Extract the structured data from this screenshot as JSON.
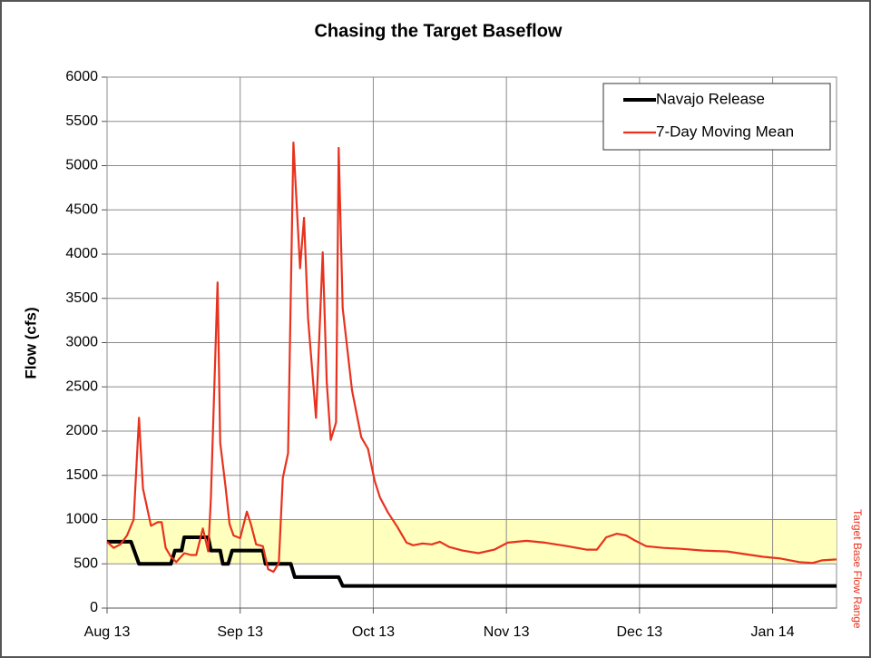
{
  "chart_data": {
    "type": "line",
    "title": "Chasing the Target Baseflow",
    "ylabel": "Flow (cfs)",
    "ylim": [
      0,
      6000
    ],
    "yticks": [
      0,
      500,
      1000,
      1500,
      2000,
      2500,
      3000,
      3500,
      4000,
      4500,
      5000,
      5500,
      6000
    ],
    "xlim": [
      0,
      5.48
    ],
    "xticks": [
      {
        "value": 0,
        "label": "Aug 13"
      },
      {
        "value": 1,
        "label": "Sep 13"
      },
      {
        "value": 2,
        "label": "Oct 13"
      },
      {
        "value": 3,
        "label": "Nov 13"
      },
      {
        "value": 4,
        "label": "Dec 13"
      },
      {
        "value": 5,
        "label": "Jan 14"
      }
    ],
    "grid": true,
    "legend": "upper right",
    "band": {
      "range": [
        500,
        1000
      ],
      "color": "#ffffb3",
      "label": "Target Base Flow Range",
      "label_color": "#e8321e"
    },
    "series": [
      {
        "name": "Navajo Release",
        "color": "#000000",
        "x": [
          0,
          0.18,
          0.24,
          0.48,
          0.51,
          0.56,
          0.58,
          0.76,
          0.78,
          0.85,
          0.87,
          0.91,
          0.94,
          1.17,
          1.19,
          1.38,
          1.41,
          1.74,
          1.77,
          5.48
        ],
        "values": [
          750,
          750,
          500,
          500,
          650,
          650,
          800,
          800,
          650,
          650,
          500,
          500,
          650,
          650,
          500,
          500,
          350,
          350,
          250,
          250
        ]
      },
      {
        "name": "7-Day Moving Mean",
        "color": "#e8321e",
        "x": [
          0,
          0.05,
          0.1,
          0.15,
          0.2,
          0.24,
          0.27,
          0.33,
          0.38,
          0.41,
          0.44,
          0.48,
          0.52,
          0.58,
          0.63,
          0.67,
          0.72,
          0.76,
          0.78,
          0.83,
          0.85,
          0.89,
          0.92,
          0.95,
          1.0,
          1.05,
          1.08,
          1.12,
          1.17,
          1.21,
          1.25,
          1.29,
          1.32,
          1.36,
          1.4,
          1.45,
          1.48,
          1.51,
          1.57,
          1.62,
          1.65,
          1.68,
          1.72,
          1.74,
          1.77,
          1.84,
          1.91,
          1.96,
          2.01,
          2.05,
          2.11,
          2.18,
          2.25,
          2.3,
          2.37,
          2.44,
          2.5,
          2.57,
          2.67,
          2.79,
          2.91,
          3.01,
          3.15,
          3.29,
          3.46,
          3.6,
          3.68,
          3.75,
          3.83,
          3.9,
          3.97,
          4.05,
          4.18,
          4.31,
          4.48,
          4.66,
          4.79,
          4.93,
          5.06,
          5.2,
          5.3,
          5.37,
          5.48
        ],
        "values": [
          750,
          680,
          720,
          820,
          1000,
          2150,
          1350,
          930,
          970,
          970,
          680,
          580,
          520,
          620,
          600,
          600,
          900,
          640,
          1230,
          3680,
          1870,
          1370,
          950,
          820,
          790,
          1090,
          950,
          720,
          700,
          440,
          410,
          510,
          1470,
          1750,
          5260,
          3840,
          4410,
          3280,
          2150,
          4020,
          2560,
          1900,
          2100,
          5200,
          3390,
          2460,
          1930,
          1800,
          1440,
          1250,
          1080,
          920,
          740,
          710,
          730,
          720,
          750,
          690,
          650,
          620,
          660,
          740,
          760,
          740,
          700,
          660,
          660,
          800,
          840,
          820,
          760,
          700,
          680,
          670,
          650,
          640,
          610,
          580,
          560,
          520,
          510,
          540,
          550
        ]
      }
    ]
  }
}
